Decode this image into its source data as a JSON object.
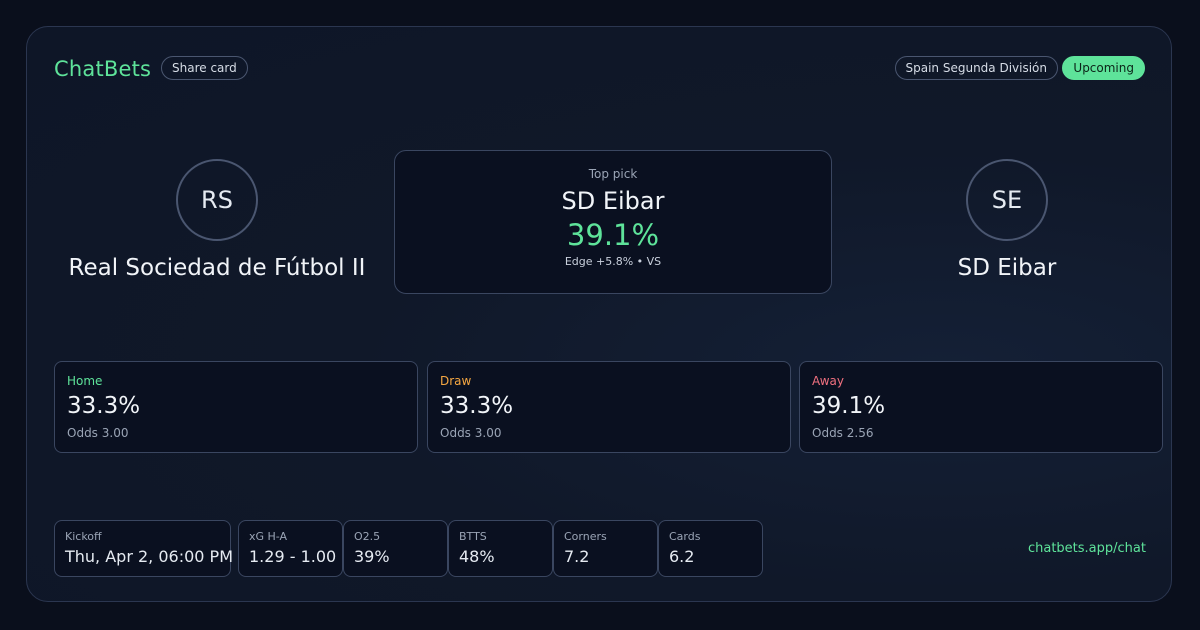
{
  "header": {
    "brand": "ChatBets",
    "share_label": "Share card",
    "league": "Spain Segunda División",
    "status": "Upcoming"
  },
  "home_team": {
    "initials": "RS",
    "name": "Real Sociedad de Fútbol II"
  },
  "away_team": {
    "initials": "SE",
    "name": "SD Eibar"
  },
  "top_pick": {
    "label": "Top pick",
    "team": "SD Eibar",
    "probability": "39.1%",
    "edge": "Edge +5.8% • VS"
  },
  "outcomes": [
    {
      "label": "Home",
      "probability": "33.3%",
      "odds": "Odds 3.00"
    },
    {
      "label": "Draw",
      "probability": "33.3%",
      "odds": "Odds 3.00"
    },
    {
      "label": "Away",
      "probability": "39.1%",
      "odds": "Odds 2.56"
    }
  ],
  "stats": [
    {
      "label": "Kickoff",
      "value": "Thu, Apr 2, 06:00 PM"
    },
    {
      "label": "xG H-A",
      "value": "1.29 - 1.00"
    },
    {
      "label": "O2.5",
      "value": "39%"
    },
    {
      "label": "BTTS",
      "value": "48%"
    },
    {
      "label": "Corners",
      "value": "7.2"
    },
    {
      "label": "Cards",
      "value": "6.2"
    }
  ],
  "footer": {
    "site": "chatbets.app/chat"
  },
  "colors": {
    "accent": "#5ee39a",
    "home": "#5ee39a",
    "draw": "#f5a742",
    "away": "#f0707f",
    "background": "#0a0f1c"
  }
}
